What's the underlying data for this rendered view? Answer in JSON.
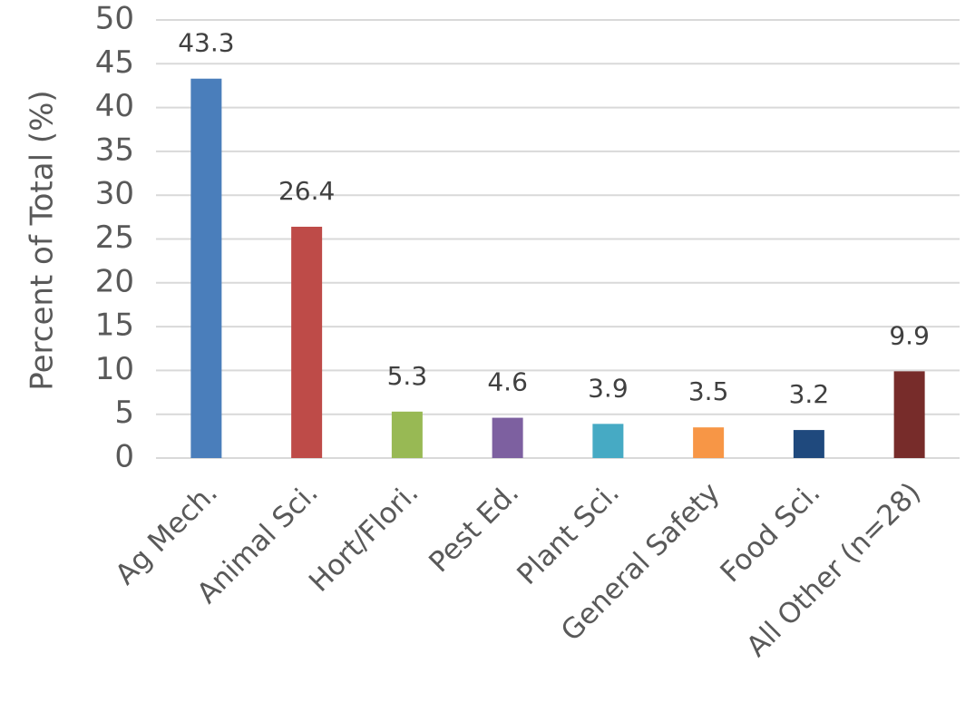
{
  "chart_data": {
    "type": "bar",
    "categories": [
      "Ag Mech.",
      "Animal Sci.",
      "Hort/Flori.",
      "Pest Ed.",
      "Plant Sci.",
      "General Safety",
      "Food Sci.",
      "All Other (n=28)"
    ],
    "values": [
      43.3,
      26.4,
      5.3,
      4.6,
      3.9,
      3.5,
      3.2,
      9.9
    ],
    "data_labels": [
      "43.3",
      "26.4",
      "5.3",
      "4.6",
      "3.9",
      "3.5",
      "3.2",
      "9.9"
    ],
    "colors": [
      "#4a7ebb",
      "#be4b48",
      "#98b954",
      "#7d60a0",
      "#46aac4",
      "#f79646",
      "#1f497d",
      "#772c2a"
    ],
    "title": "",
    "xlabel": "",
    "ylabel": "Percent of Total (%)",
    "ylim": [
      0,
      50
    ],
    "yticks": [
      0,
      5,
      10,
      15,
      20,
      25,
      30,
      35,
      40,
      45,
      50
    ],
    "grid": true,
    "legend": "none"
  }
}
